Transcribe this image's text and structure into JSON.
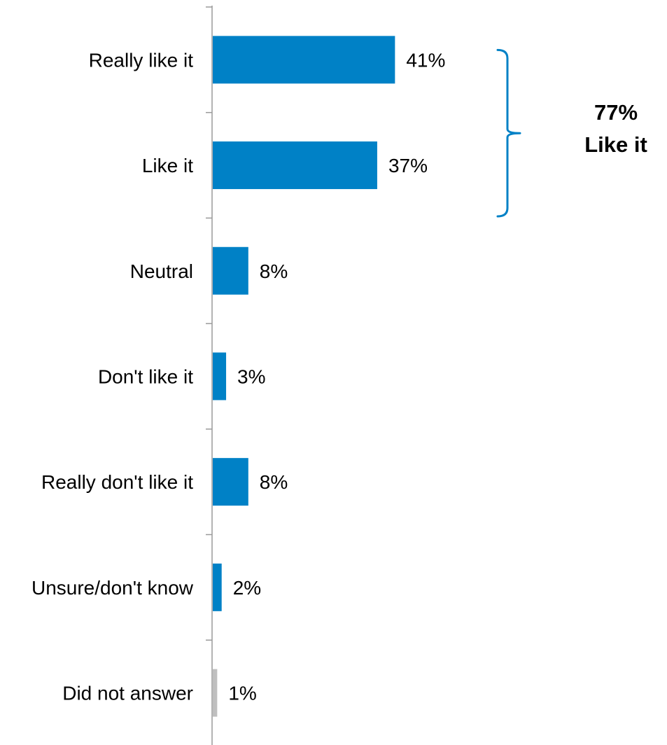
{
  "chart_data": {
    "type": "bar",
    "orientation": "horizontal",
    "categories": [
      "Really like it",
      "Like it",
      "Neutral",
      "Don't like it",
      "Really don't like it",
      "Unsure/don't know",
      "Did not answer"
    ],
    "values": [
      41,
      37,
      8,
      3,
      8,
      2,
      1
    ],
    "data_labels": [
      "41%",
      "37%",
      "8%",
      "3%",
      "8%",
      "2%",
      "1%"
    ],
    "bar_colors": [
      "#0081C6",
      "#0081C6",
      "#0081C6",
      "#0081C6",
      "#0081C6",
      "#0081C6",
      "#BFBFBF"
    ],
    "title": "",
    "xlabel": "",
    "ylabel": "",
    "grid": false,
    "legend": "none",
    "callout": {
      "line1": "77%",
      "line2": "Like it",
      "spans_categories": [
        "Really like it",
        "Like it"
      ],
      "bracket_color": "#0081C6"
    }
  },
  "colors": {
    "axis": "#9A9A9A",
    "text": "#000000"
  }
}
